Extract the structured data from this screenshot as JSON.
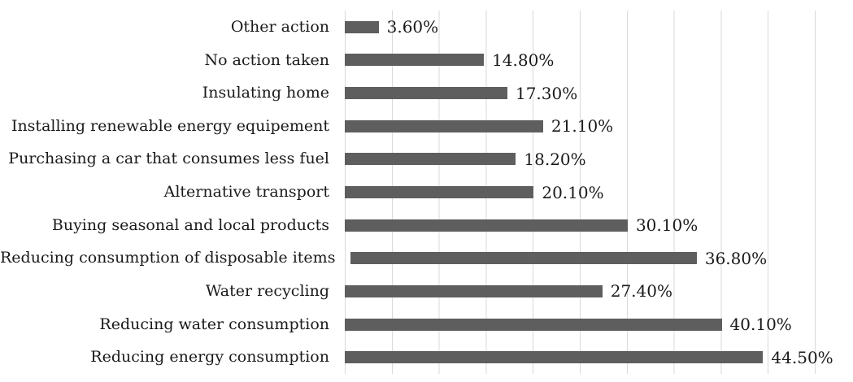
{
  "chart_data": {
    "type": "bar",
    "orientation": "horizontal",
    "title": "",
    "xlabel": "",
    "ylabel": "",
    "categories": [
      "Other action",
      "No action taken",
      "Insulating home",
      "Installing renewable energy equipement",
      "Purchasing a car that consumes less fuel",
      "Alternative transport",
      "Buying seasonal and local products",
      "Reducing consumption of disposable items",
      "Water recycling",
      "Reducing water consumption",
      "Reducing energy consumption"
    ],
    "values": [
      3.6,
      14.8,
      17.3,
      21.1,
      18.2,
      20.1,
      30.1,
      36.8,
      27.4,
      40.1,
      44.5
    ],
    "value_labels": [
      "3.60%",
      "14.80%",
      "17.30%",
      "21.10%",
      "18.20%",
      "20.10%",
      "30.10%",
      "36.80%",
      "27.40%",
      "40.10%",
      "44.50%"
    ],
    "xlim": [
      0,
      50
    ],
    "gridline_step_percent": 5,
    "grid": true,
    "legend": false,
    "axis_tick_labels_visible": false,
    "bar_color": "#5e5e5e",
    "gridline_color": "#d9d9d9",
    "text_color": "#1a1a1a"
  }
}
